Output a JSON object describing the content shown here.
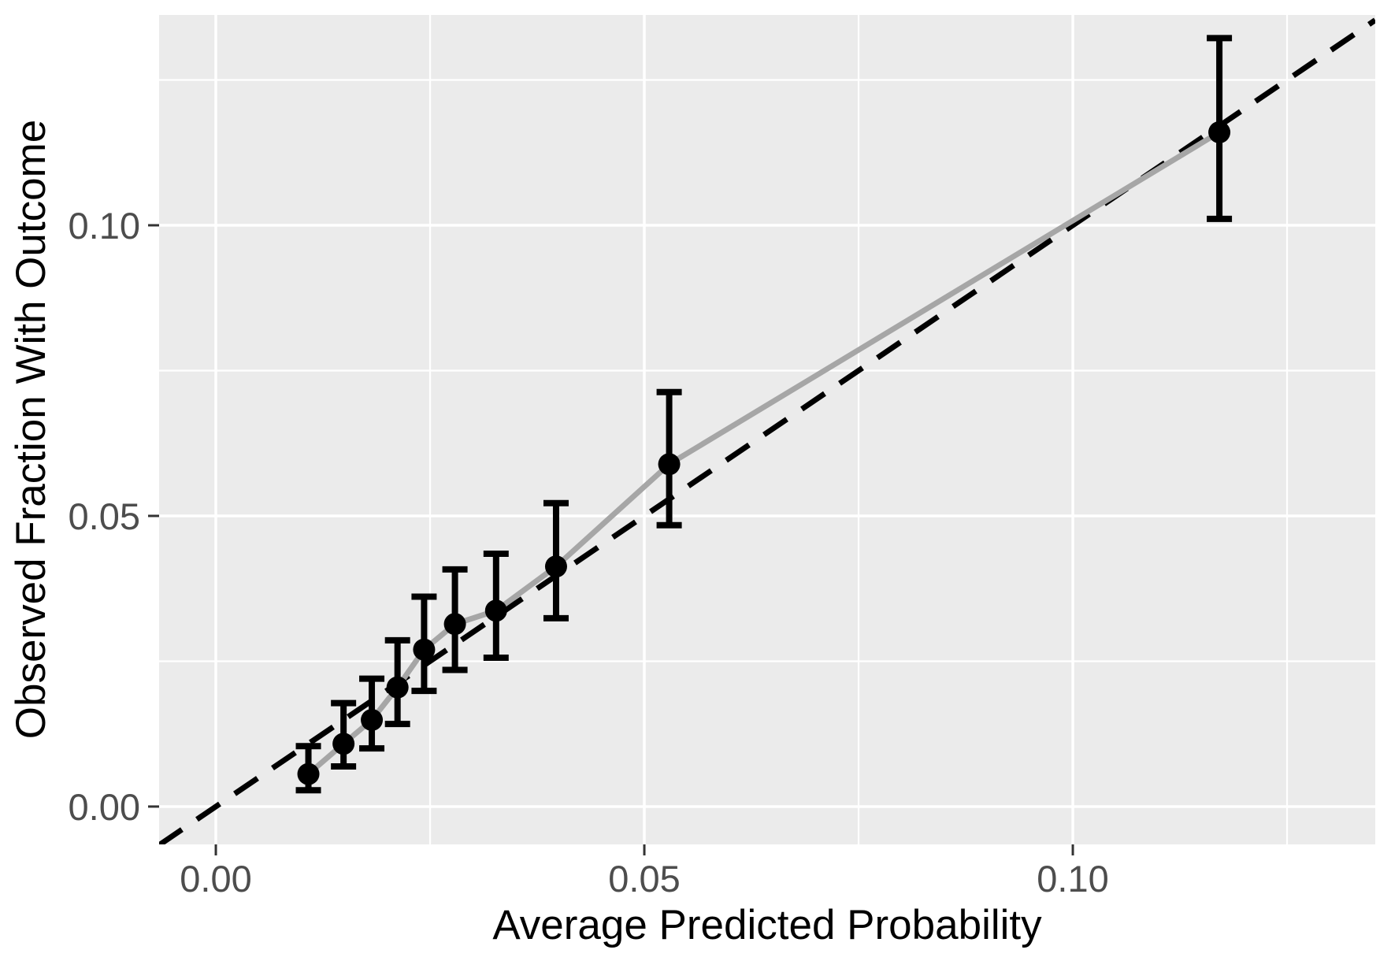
{
  "chart_data": {
    "type": "scatter",
    "subtype": "calibration-plot-with-errorbars",
    "title": "",
    "xlabel": "Average Predicted Probability",
    "ylabel": "Observed Fraction With Outcome",
    "xlim": [
      -0.00662,
      0.13529
    ],
    "ylim": [
      -0.00651,
      0.13618
    ],
    "x_ticks": [
      0,
      0.05,
      0.1
    ],
    "y_ticks": [
      0,
      0.05,
      0.1
    ],
    "x_tick_labels": [
      "0.00",
      "0.05",
      "0.10"
    ],
    "y_tick_labels": [
      "0.00",
      "0.05",
      "0.10"
    ],
    "x_minor_ticks": [
      0.025,
      0.075,
      0.125
    ],
    "y_minor_ticks": [
      0.025,
      0.075,
      0.125
    ],
    "grid": "on",
    "legend": "none",
    "series": [
      {
        "name": "identity-line",
        "type": "abline-dashed",
        "slope": 1,
        "intercept": 0
      },
      {
        "name": "calibration-curve",
        "type": "line-points-errorbars",
        "points": [
          {
            "x": 0.0108,
            "y": 0.0056,
            "lo": 0.0028,
            "hi": 0.0104
          },
          {
            "x": 0.0149,
            "y": 0.0108,
            "lo": 0.0069,
            "hi": 0.0178
          },
          {
            "x": 0.0182,
            "y": 0.0149,
            "lo": 0.01,
            "hi": 0.022
          },
          {
            "x": 0.0212,
            "y": 0.0205,
            "lo": 0.0142,
            "hi": 0.0286
          },
          {
            "x": 0.0243,
            "y": 0.027,
            "lo": 0.0199,
            "hi": 0.0361
          },
          {
            "x": 0.0279,
            "y": 0.0314,
            "lo": 0.0235,
            "hi": 0.0408
          },
          {
            "x": 0.0327,
            "y": 0.0337,
            "lo": 0.0256,
            "hi": 0.0435
          },
          {
            "x": 0.0397,
            "y": 0.0413,
            "lo": 0.0324,
            "hi": 0.0522
          },
          {
            "x": 0.0529,
            "y": 0.0589,
            "lo": 0.0484,
            "hi": 0.0713
          },
          {
            "x": 0.1171,
            "y": 0.116,
            "lo": 0.1011,
            "hi": 0.1322
          }
        ]
      }
    ],
    "colors": {
      "figure_bg": "#FFFFFF",
      "panel_bg": "#EBEBEB",
      "grid": "#FFFFFF",
      "identity_line": "#000000",
      "calibration_line": "#A6A6A6",
      "point": "#000000",
      "error_bar": "#000000",
      "tick": "#333333",
      "tick_label": "#4D4D4D",
      "axis_title": "#000000"
    }
  }
}
